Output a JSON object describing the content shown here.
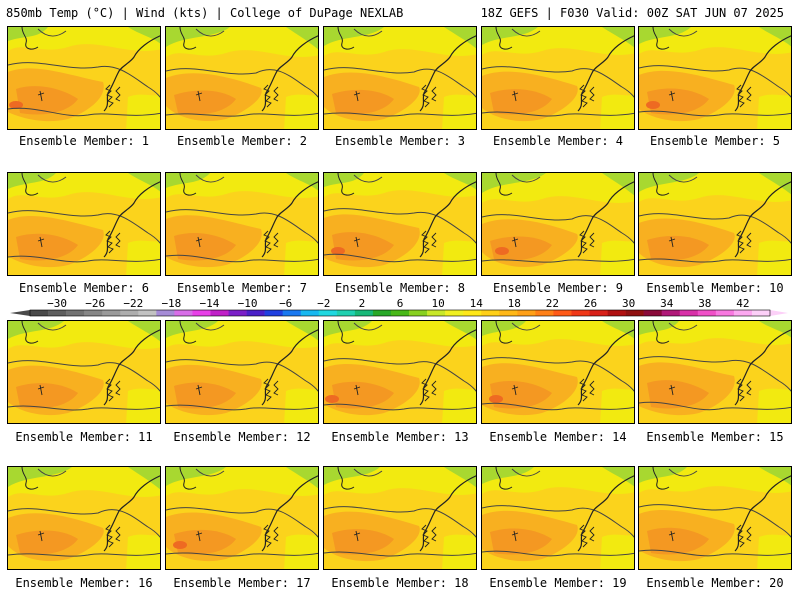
{
  "header": {
    "title": "850mb Temp (°C) | Wind (kts) | College of DuPage NEXLAB",
    "run_info": "18Z GEFS | F030 Valid: 00Z SAT JUN 07 2025"
  },
  "panels": [
    {
      "label": "Ensemble Member: 1"
    },
    {
      "label": "Ensemble Member: 2"
    },
    {
      "label": "Ensemble Member: 3"
    },
    {
      "label": "Ensemble Member: 4"
    },
    {
      "label": "Ensemble Member: 5"
    },
    {
      "label": "Ensemble Member: 6"
    },
    {
      "label": "Ensemble Member: 7"
    },
    {
      "label": "Ensemble Member: 8"
    },
    {
      "label": "Ensemble Member: 9"
    },
    {
      "label": "Ensemble Member: 10"
    },
    {
      "label": "Ensemble Member: 11"
    },
    {
      "label": "Ensemble Member: 12"
    },
    {
      "label": "Ensemble Member: 13"
    },
    {
      "label": "Ensemble Member: 14"
    },
    {
      "label": "Ensemble Member: 15"
    },
    {
      "label": "Ensemble Member: 16"
    },
    {
      "label": "Ensemble Member: 17"
    },
    {
      "label": "Ensemble Member: 18"
    },
    {
      "label": "Ensemble Member: 19"
    },
    {
      "label": "Ensemble Member: 20"
    }
  ],
  "colorbar": {
    "tick_labels": [
      "-30",
      "-26",
      "-22",
      "-18",
      "-14",
      "-10",
      "-6",
      "-2",
      "2",
      "6",
      "10",
      "14",
      "18",
      "22",
      "26",
      "30",
      "34",
      "38",
      "42"
    ],
    "colors": [
      "#4a4a4a",
      "#5e5e5e",
      "#727272",
      "#868686",
      "#9a9a9a",
      "#aeaeae",
      "#c2c2c2",
      "#a58bd6",
      "#d86ee8",
      "#e840e8",
      "#c020c8",
      "#7a1fc8",
      "#4a20c8",
      "#2040e0",
      "#1a78f0",
      "#18b8f0",
      "#20d8e0",
      "#20d0b0",
      "#18b878",
      "#28a828",
      "#48b818",
      "#88d020",
      "#c8e828",
      "#f0f020",
      "#ffe818",
      "#ffd018",
      "#ffb818",
      "#ffa018",
      "#ff8018",
      "#ff5a18",
      "#f03818",
      "#d82018",
      "#b01010",
      "#901010",
      "#8a0a3a",
      "#b01878",
      "#d830a8",
      "#f050c8",
      "#f878e0",
      "#fca8f0",
      "#fcd0f8"
    ]
  },
  "map_colors": {
    "green": "#a8d830",
    "yellow": "#f2ea10",
    "gold": "#fbd31c",
    "orange": "#f8b020",
    "dark_orange": "#f49822",
    "red_orange": "#ee6a22"
  }
}
